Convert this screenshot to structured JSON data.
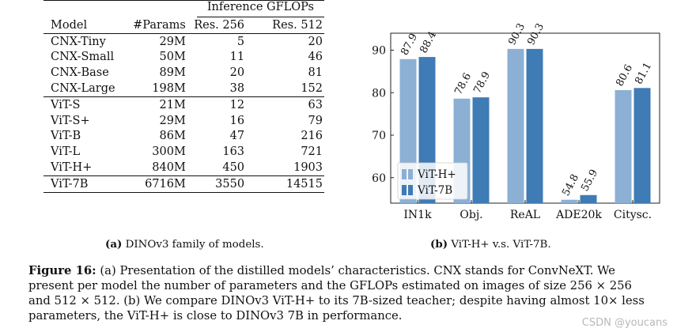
{
  "table": {
    "group_header": "Inference GFLOPs",
    "columns": [
      "Model",
      "#Params",
      "Res. 256",
      "Res. 512"
    ],
    "groups": [
      [
        [
          "CNX-Tiny",
          "29M",
          "5",
          "20"
        ],
        [
          "CNX-Small",
          "50M",
          "11",
          "46"
        ],
        [
          "CNX-Base",
          "89M",
          "20",
          "81"
        ],
        [
          "CNX-Large",
          "198M",
          "38",
          "152"
        ]
      ],
      [
        [
          "ViT-S",
          "21M",
          "12",
          "63"
        ],
        [
          "ViT-S+",
          "29M",
          "16",
          "79"
        ],
        [
          "ViT-B",
          "86M",
          "47",
          "216"
        ],
        [
          "ViT-L",
          "300M",
          "163",
          "721"
        ],
        [
          "ViT-H+",
          "840M",
          "450",
          "1903"
        ]
      ],
      [
        [
          "ViT-7B",
          "6716M",
          "3550",
          "14515"
        ]
      ]
    ]
  },
  "captions": {
    "a_label": "(a)",
    "a_text": "DINOv3 family of models.",
    "b_label": "(b)",
    "b_text": "ViT-H+ v.s. ViT-7B."
  },
  "figure_caption": {
    "label": "Figure 16:",
    "text": "(a) Presentation of the distilled models’ characteristics. CNX stands for ConvNeXT. We present per model the number of parameters and the GFLOPs estimated on images of size 256 × 256 and 512 × 512. (b) We compare DINOv3 ViT-H+ to its 7B-sized teacher; despite having almost 10× less parameters, the ViT-H+ is close to DINOv3 7B in performance."
  },
  "watermark": "CSDN @youcans",
  "chart_data": {
    "type": "bar",
    "categories": [
      "IN1k",
      "Obj.",
      "ReAL",
      "ADE20k",
      "Citysc."
    ],
    "series": [
      {
        "name": "ViT-H+",
        "values": [
          87.9,
          78.6,
          90.3,
          54.8,
          80.6
        ],
        "color": "#8cb0d4"
      },
      {
        "name": "ViT-7B",
        "values": [
          88.4,
          78.9,
          90.3,
          55.9,
          81.1
        ],
        "color": "#3f7bb5"
      }
    ],
    "value_labels": {
      "ViT-H+": [
        "87.9",
        "78.6",
        "90.3",
        "54.8",
        "80.6"
      ],
      "ViT-7B": [
        "88.4",
        "78.9",
        "90.3",
        "55.9",
        "81.1"
      ]
    },
    "yticks": [
      "60",
      "70",
      "80",
      "90"
    ],
    "ylim": [
      54,
      94
    ],
    "legend_position": "lower-left",
    "title": "",
    "xlabel": "",
    "ylabel": ""
  }
}
